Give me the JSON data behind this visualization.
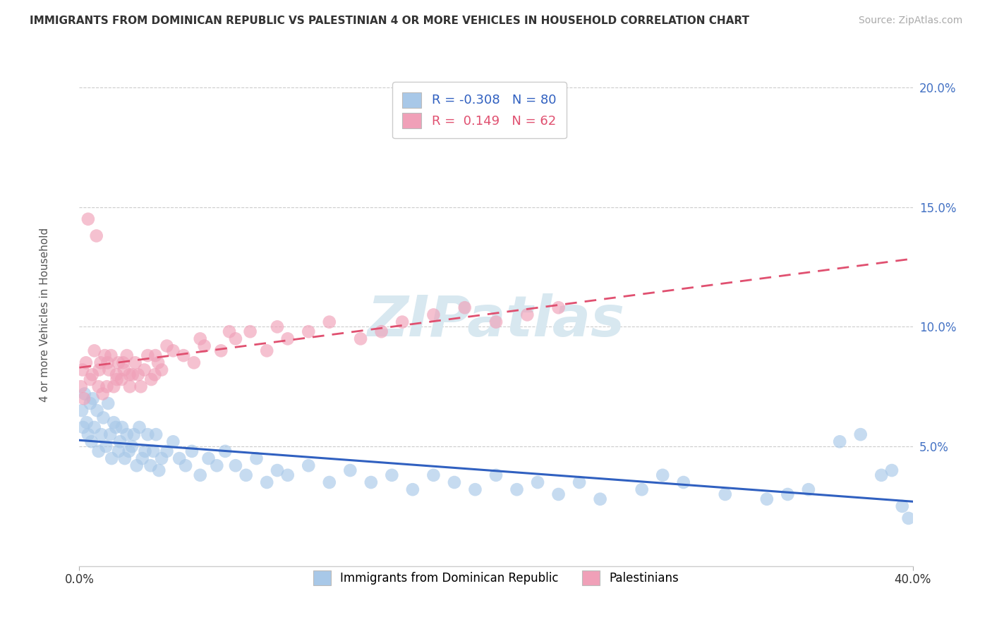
{
  "title": "IMMIGRANTS FROM DOMINICAN REPUBLIC VS PALESTINIAN 4 OR MORE VEHICLES IN HOUSEHOLD CORRELATION CHART",
  "source": "Source: ZipAtlas.com",
  "ylabel": "4 or more Vehicles in Household",
  "blue_R": -0.308,
  "blue_N": 80,
  "pink_R": 0.149,
  "pink_N": 62,
  "blue_label": "Immigrants from Dominican Republic",
  "pink_label": "Palestinians",
  "blue_color": "#A8C8E8",
  "pink_color": "#F0A0B8",
  "blue_line_color": "#3060C0",
  "pink_line_color": "#E05070",
  "watermark_color": "#D8E8F0",
  "watermark": "ZIPatlas",
  "xlim": [
    0.0,
    40.0
  ],
  "ylim": [
    0.0,
    20.5
  ],
  "ytick_vals": [
    5.0,
    10.0,
    15.0,
    20.0
  ],
  "ytick_labels": [
    "5.0%",
    "10.0%",
    "15.0%",
    "20.0%"
  ],
  "blue_x": [
    0.12,
    0.18,
    0.25,
    0.35,
    0.42,
    0.52,
    0.58,
    0.65,
    0.72,
    0.85,
    0.92,
    1.05,
    1.15,
    1.28,
    1.38,
    1.48,
    1.55,
    1.65,
    1.75,
    1.88,
    1.95,
    2.05,
    2.18,
    2.28,
    2.38,
    2.52,
    2.62,
    2.75,
    2.88,
    3.02,
    3.15,
    3.28,
    3.42,
    3.55,
    3.68,
    3.82,
    3.95,
    4.2,
    4.5,
    4.8,
    5.1,
    5.4,
    5.8,
    6.2,
    6.6,
    7.0,
    7.5,
    8.0,
    8.5,
    9.0,
    9.5,
    10.0,
    11.0,
    12.0,
    13.0,
    14.0,
    15.0,
    16.0,
    17.0,
    18.0,
    19.0,
    20.0,
    21.0,
    22.0,
    23.0,
    24.0,
    25.0,
    27.0,
    29.0,
    31.0,
    33.0,
    35.0,
    36.5,
    37.5,
    38.5,
    39.0,
    39.5,
    39.8,
    34.0,
    28.0
  ],
  "blue_y": [
    6.5,
    5.8,
    7.2,
    6.0,
    5.5,
    6.8,
    5.2,
    7.0,
    5.8,
    6.5,
    4.8,
    5.5,
    6.2,
    5.0,
    6.8,
    5.5,
    4.5,
    6.0,
    5.8,
    4.8,
    5.2,
    5.8,
    4.5,
    5.5,
    4.8,
    5.0,
    5.5,
    4.2,
    5.8,
    4.5,
    4.8,
    5.5,
    4.2,
    4.8,
    5.5,
    4.0,
    4.5,
    4.8,
    5.2,
    4.5,
    4.2,
    4.8,
    3.8,
    4.5,
    4.2,
    4.8,
    4.2,
    3.8,
    4.5,
    3.5,
    4.0,
    3.8,
    4.2,
    3.5,
    4.0,
    3.5,
    3.8,
    3.2,
    3.8,
    3.5,
    3.2,
    3.8,
    3.2,
    3.5,
    3.0,
    3.5,
    2.8,
    3.2,
    3.5,
    3.0,
    2.8,
    3.2,
    5.2,
    5.5,
    3.8,
    4.0,
    2.5,
    2.0,
    3.0,
    3.8
  ],
  "pink_x": [
    0.08,
    0.15,
    0.22,
    0.32,
    0.42,
    0.52,
    0.62,
    0.72,
    0.82,
    0.92,
    1.02,
    1.12,
    1.22,
    1.32,
    1.42,
    1.52,
    1.65,
    1.78,
    1.88,
    2.02,
    2.15,
    2.28,
    2.42,
    2.55,
    2.68,
    2.82,
    2.95,
    3.12,
    3.28,
    3.45,
    3.62,
    3.78,
    3.95,
    4.5,
    5.0,
    5.5,
    6.0,
    6.8,
    7.5,
    8.2,
    9.0,
    10.0,
    11.0,
    12.0,
    13.5,
    14.5,
    15.5,
    17.0,
    18.5,
    20.0,
    21.5,
    23.0,
    2.1,
    2.4,
    1.8,
    0.95,
    1.35,
    3.65,
    4.2,
    5.8,
    7.2,
    9.5
  ],
  "pink_y": [
    7.5,
    8.2,
    7.0,
    8.5,
    14.5,
    7.8,
    8.0,
    9.0,
    13.8,
    7.5,
    8.5,
    7.2,
    8.8,
    7.5,
    8.2,
    8.8,
    7.5,
    8.0,
    8.5,
    7.8,
    8.2,
    8.8,
    7.5,
    8.0,
    8.5,
    8.0,
    7.5,
    8.2,
    8.8,
    7.8,
    8.0,
    8.5,
    8.2,
    9.0,
    8.8,
    8.5,
    9.2,
    9.0,
    9.5,
    9.8,
    9.0,
    9.5,
    9.8,
    10.2,
    9.5,
    9.8,
    10.2,
    10.5,
    10.8,
    10.2,
    10.5,
    10.8,
    8.5,
    8.0,
    7.8,
    8.2,
    8.5,
    8.8,
    9.2,
    9.5,
    9.8,
    10.0
  ],
  "pink_line_x0": 0.0,
  "pink_line_x1": 40.0,
  "blue_line_x0": 0.0,
  "blue_line_x1": 40.0
}
